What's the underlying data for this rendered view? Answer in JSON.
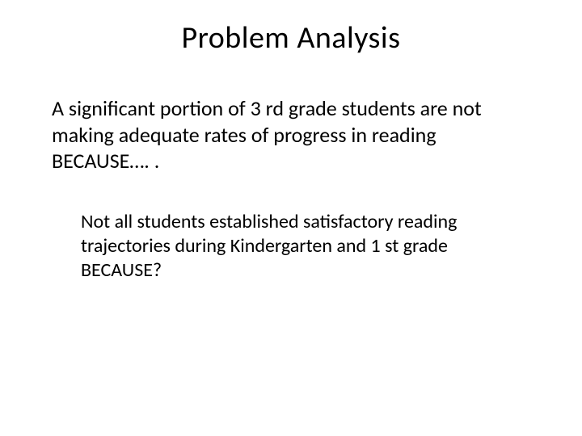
{
  "slide": {
    "title": "Problem Analysis",
    "paragraph1": "A significant portion of 3 rd grade students are not making adequate rates of progress in reading  BECAUSE…. .",
    "paragraph2": "Not all students established satisfactory reading trajectories during Kindergarten and 1 st grade BECAUSE?"
  },
  "style": {
    "background_color": "#ffffff",
    "text_color": "#000000",
    "title_fontsize": 38,
    "body1_fontsize": 26,
    "body2_fontsize": 24,
    "font_family": "Calibri"
  }
}
